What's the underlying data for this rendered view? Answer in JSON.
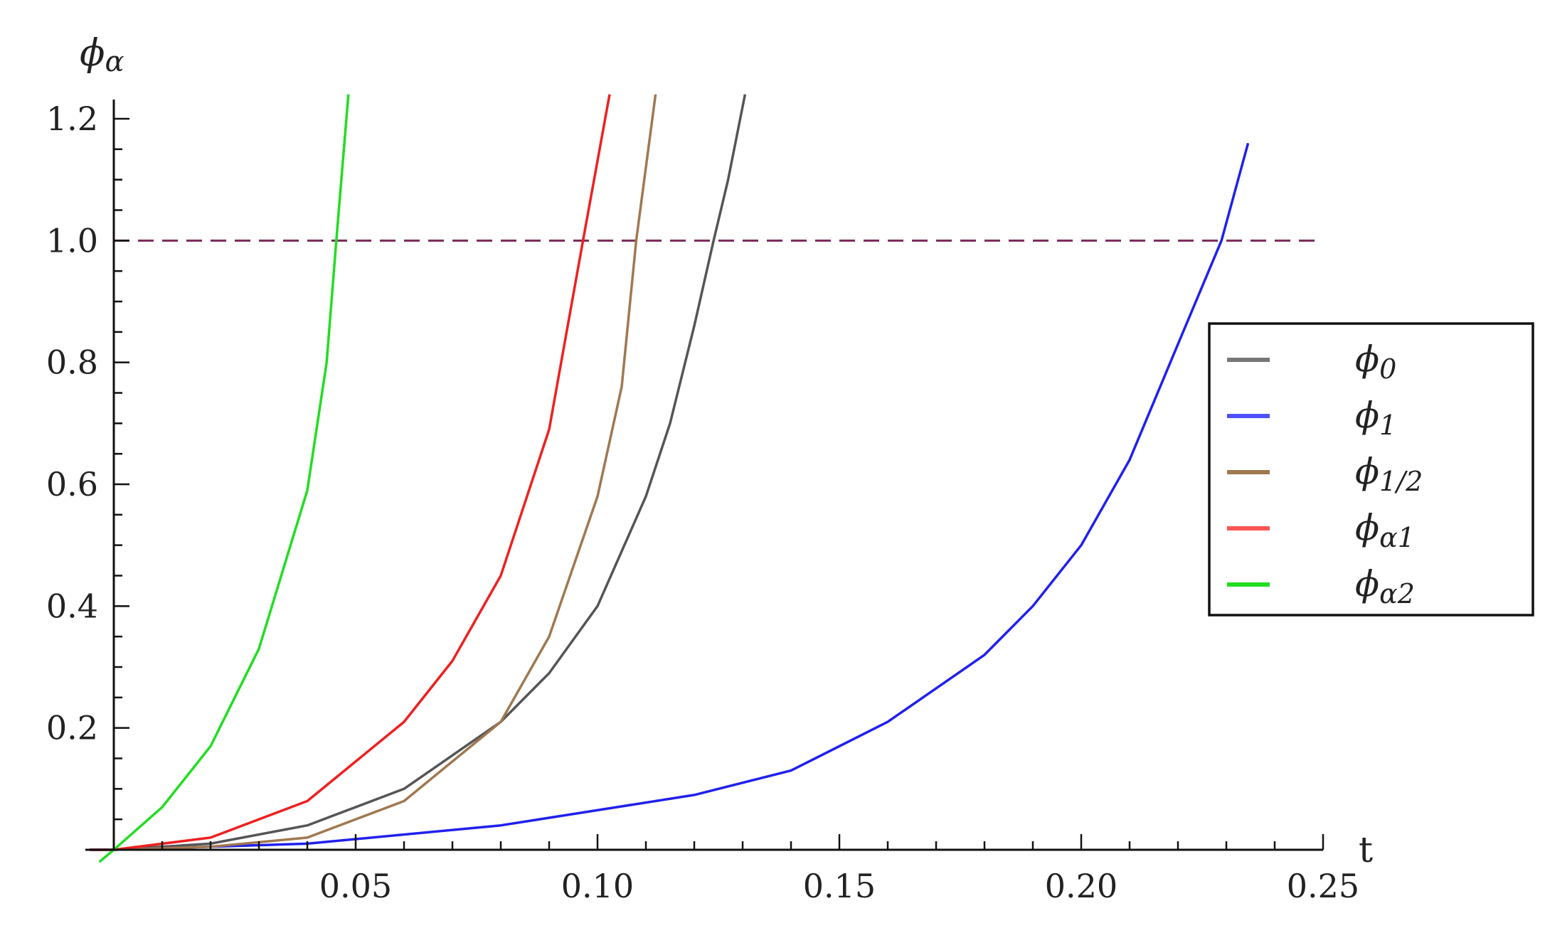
{
  "chart_data": {
    "type": "line",
    "title": "",
    "xlabel": "t",
    "ylabel": "ϕα",
    "xlim": [
      -0.006,
      0.256
    ],
    "ylim": [
      -0.03,
      1.24
    ],
    "x_ticks": [
      {
        "value": 0.05,
        "label": "0.05"
      },
      {
        "value": 0.1,
        "label": "0.10"
      },
      {
        "value": 0.15,
        "label": "0.15"
      },
      {
        "value": 0.2,
        "label": "0.20"
      },
      {
        "value": 0.25,
        "label": "0.25"
      }
    ],
    "y_ticks": [
      {
        "value": 0.2,
        "label": "0.2"
      },
      {
        "value": 0.4,
        "label": "0.4"
      },
      {
        "value": 0.6,
        "label": "0.6"
      },
      {
        "value": 0.8,
        "label": "0.8"
      },
      {
        "value": 1.0,
        "label": "1.0"
      },
      {
        "value": 1.2,
        "label": "1.2"
      }
    ],
    "reference_line": {
      "y": 1.0,
      "style": "dashed",
      "color": "#7b2a5a"
    },
    "legend_position": "right",
    "series": [
      {
        "name": "ϕ0",
        "label_main": "ϕ",
        "label_sub": "0",
        "color": "#555555",
        "legend_color": "#777777",
        "points": [
          [
            -0.005,
            0.0
          ],
          [
            0.0,
            0.0
          ],
          [
            0.02,
            0.01
          ],
          [
            0.04,
            0.04
          ],
          [
            0.06,
            0.1
          ],
          [
            0.08,
            0.21
          ],
          [
            0.09,
            0.29
          ],
          [
            0.1,
            0.4
          ],
          [
            0.11,
            0.58
          ],
          [
            0.115,
            0.7
          ],
          [
            0.12,
            0.86
          ],
          [
            0.124,
            1.0
          ],
          [
            0.127,
            1.1
          ],
          [
            0.1305,
            1.24
          ]
        ]
      },
      {
        "name": "ϕ1",
        "label_main": "ϕ",
        "label_sub": "1",
        "color": "#2020ee",
        "legend_color": "#5050ff",
        "points": [
          [
            -0.005,
            0.0
          ],
          [
            0.0,
            0.0
          ],
          [
            0.04,
            0.01
          ],
          [
            0.08,
            0.04
          ],
          [
            0.12,
            0.09
          ],
          [
            0.14,
            0.13
          ],
          [
            0.16,
            0.21
          ],
          [
            0.18,
            0.32
          ],
          [
            0.19,
            0.4
          ],
          [
            0.2,
            0.5
          ],
          [
            0.21,
            0.64
          ],
          [
            0.22,
            0.83
          ],
          [
            0.229,
            1.0
          ],
          [
            0.2345,
            1.16
          ]
        ]
      },
      {
        "name": "ϕ1/2",
        "label_main": "ϕ",
        "label_sub": "1/2",
        "color": "#a07850",
        "legend_color": "#a07850",
        "points": [
          [
            -0.005,
            0.0
          ],
          [
            0.0,
            0.0
          ],
          [
            0.02,
            0.005
          ],
          [
            0.04,
            0.02
          ],
          [
            0.06,
            0.08
          ],
          [
            0.08,
            0.21
          ],
          [
            0.09,
            0.35
          ],
          [
            0.1,
            0.58
          ],
          [
            0.105,
            0.76
          ],
          [
            0.108,
            1.0
          ],
          [
            0.112,
            1.24
          ]
        ]
      },
      {
        "name": "ϕα1",
        "label_main": "ϕ",
        "label_sub": "α1",
        "color": "#ee2020",
        "legend_color": "#ff5555",
        "points": [
          [
            -0.005,
            0.0
          ],
          [
            0.0,
            0.0
          ],
          [
            0.02,
            0.02
          ],
          [
            0.04,
            0.08
          ],
          [
            0.06,
            0.21
          ],
          [
            0.07,
            0.31
          ],
          [
            0.08,
            0.45
          ],
          [
            0.09,
            0.69
          ],
          [
            0.097,
            1.0
          ],
          [
            0.1025,
            1.24
          ]
        ]
      },
      {
        "name": "ϕα2",
        "label_main": "ϕ",
        "label_sub": "α2",
        "color": "#22dd22",
        "legend_color": "#22dd22",
        "points": [
          [
            -0.003,
            -0.02
          ],
          [
            0.0,
            0.0
          ],
          [
            0.01,
            0.07
          ],
          [
            0.02,
            0.17
          ],
          [
            0.03,
            0.33
          ],
          [
            0.04,
            0.59
          ],
          [
            0.044,
            0.8
          ],
          [
            0.046,
            1.0
          ],
          [
            0.0485,
            1.24
          ]
        ]
      }
    ]
  }
}
